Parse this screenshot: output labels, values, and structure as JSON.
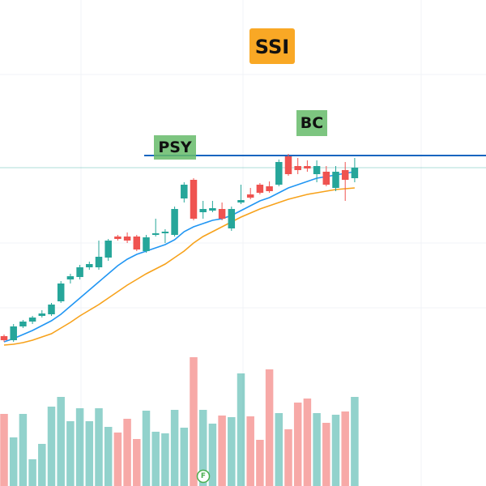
{
  "chart_data": {
    "type": "candlestick",
    "title": "SSI",
    "annotations": [
      "PSY",
      "BC",
      "F"
    ],
    "ylim": [
      0,
      600
    ],
    "volume_lim": [
      0,
      600
    ],
    "level_line": 408,
    "price_line": 393,
    "up_color": "#26a69a",
    "down_color": "#ef5350",
    "open": [
      185,
      180,
      197,
      203,
      210,
      212,
      228,
      255,
      258,
      270,
      270,
      282,
      308,
      308,
      308,
      290,
      310,
      312,
      310,
      355,
      378,
      338,
      340,
      342,
      318,
      350,
      360,
      372,
      370,
      372,
      407,
      395,
      395,
      385,
      388,
      368,
      390,
      380
    ],
    "close": [
      180,
      197,
      203,
      208,
      213,
      224,
      250,
      259,
      270,
      274,
      283,
      303,
      305,
      303,
      292,
      307,
      312,
      314,
      342,
      372,
      330,
      342,
      343,
      330,
      342,
      353,
      356,
      362,
      364,
      400,
      385,
      390,
      392,
      395,
      372,
      388,
      378,
      393
    ],
    "high": [
      187,
      200,
      205,
      210,
      217,
      226,
      253,
      262,
      273,
      277,
      303,
      305,
      310,
      313,
      310,
      310,
      330,
      317,
      345,
      375,
      380,
      352,
      352,
      350,
      345,
      372,
      368,
      374,
      376,
      403,
      410,
      405,
      402,
      402,
      395,
      395,
      400,
      405
    ],
    "low": [
      178,
      178,
      195,
      200,
      208,
      210,
      226,
      250,
      255,
      267,
      267,
      278,
      303,
      300,
      290,
      288,
      308,
      300,
      308,
      350,
      328,
      330,
      338,
      328,
      315,
      348,
      354,
      360,
      362,
      370,
      383,
      385,
      388,
      375,
      370,
      364,
      352,
      375
    ],
    "volume": [
      89,
      60,
      89,
      33,
      52,
      98,
      110,
      80,
      96,
      80,
      96,
      73,
      66,
      83,
      58,
      93,
      67,
      65,
      94,
      72,
      159,
      94,
      77,
      87,
      85,
      139,
      86,
      57,
      144,
      90,
      70,
      103,
      108,
      90,
      78,
      88,
      92,
      110
    ],
    "series": [
      {
        "color": "#2196f3",
        "values": [
          178,
          182,
          187,
          192,
          198,
          204,
          212,
          222,
          232,
          242,
          252,
          262,
          272,
          280,
          286,
          290,
          294,
          298,
          304,
          314,
          320,
          324,
          328,
          330,
          334,
          340,
          346,
          352,
          356,
          362,
          368,
          372,
          376,
          380,
          382,
          384,
          386,
          388
        ]
      },
      {
        "color": "#f7a21b",
        "values": [
          174,
          175,
          177,
          180,
          184,
          188,
          195,
          202,
          210,
          217,
          224,
          232,
          240,
          248,
          255,
          262,
          268,
          274,
          282,
          290,
          300,
          308,
          314,
          320,
          326,
          332,
          337,
          342,
          346,
          350,
          354,
          357,
          360,
          362,
          364,
          366,
          367,
          368
        ]
      }
    ]
  }
}
